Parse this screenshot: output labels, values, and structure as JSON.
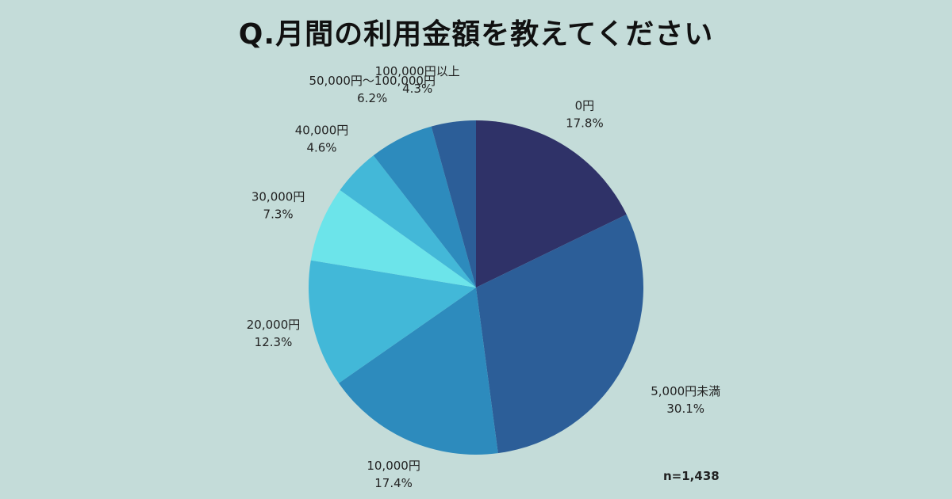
{
  "title": "Q.月間の利用金額を教えてください",
  "sample_size": "n=1,438",
  "chart_data": {
    "type": "pie",
    "title": "Q.月間の利用金額を教えてください",
    "categories": [
      "0円",
      "5,000円未満",
      "10,000円",
      "20,000円",
      "30,000円",
      "40,000円",
      "50,000円〜100,000円",
      "100,000円以上"
    ],
    "values": [
      17.8,
      30.1,
      17.4,
      12.3,
      7.3,
      4.6,
      6.2,
      4.3
    ],
    "value_labels": [
      "17.8%",
      "30.1%",
      "17.4%",
      "12.3%",
      "7.3%",
      "4.6%",
      "6.2%",
      "4.3%"
    ],
    "colors": [
      "#2f3268",
      "#2c5e98",
      "#2d8bbd",
      "#42b8d8",
      "#6ce4ea",
      "#43b8d8",
      "#2d8bbd",
      "#2c5e98"
    ],
    "start_angle": "12 o'clock",
    "direction": "clockwise",
    "legend": "none"
  }
}
